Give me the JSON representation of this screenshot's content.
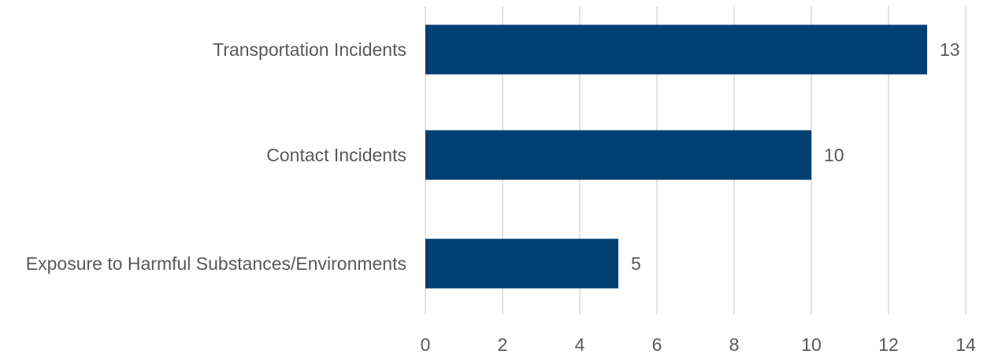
{
  "chart_data": {
    "type": "bar",
    "orientation": "horizontal",
    "categories": [
      "Transportation Incidents",
      "Contact Incidents",
      "Exposure to Harmful Substances/Environments"
    ],
    "values": [
      13,
      10,
      5
    ],
    "data_labels": [
      "13",
      "10",
      "5"
    ],
    "title": "",
    "xlabel": "",
    "ylabel": "",
    "xlim": [
      0,
      14
    ],
    "ticks": [
      0,
      2,
      4,
      6,
      8,
      10,
      12,
      14
    ],
    "tick_labels": [
      "0",
      "2",
      "4",
      "6",
      "8",
      "10",
      "12",
      "14"
    ],
    "grid": "vertical",
    "legend": "none",
    "colors": {
      "bar": "#003F72",
      "grid": "#D9D9D9",
      "text": "#595959"
    }
  }
}
